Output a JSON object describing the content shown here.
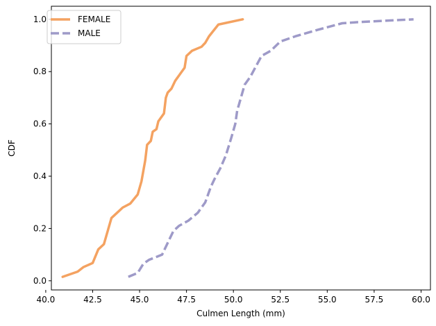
{
  "chart_data": {
    "type": "line",
    "title": "",
    "xlabel": "Culmen Length (mm)",
    "ylabel": "CDF",
    "xlim": [
      40.3,
      60.5
    ],
    "ylim": [
      -0.035,
      1.05
    ],
    "xticks": [
      40.0,
      42.5,
      45.0,
      47.5,
      50.0,
      52.5,
      55.0,
      57.5,
      60.0
    ],
    "xtick_labels": [
      "40.0",
      "42.5",
      "45.0",
      "47.5",
      "50.0",
      "52.5",
      "55.0",
      "57.5",
      "60.0"
    ],
    "yticks": [
      0.0,
      0.2,
      0.4,
      0.6,
      0.8,
      1.0
    ],
    "ytick_labels": [
      "0.0",
      "0.2",
      "0.4",
      "0.6",
      "0.8",
      "1.0"
    ],
    "grid": false,
    "legend": "top-left",
    "series": [
      {
        "name": "FEMALE",
        "color": "#F4A261",
        "style": "solid",
        "points": [
          [
            40.9,
            0.015
          ],
          [
            41.7,
            0.035
          ],
          [
            42.0,
            0.052
          ],
          [
            42.5,
            0.068
          ],
          [
            42.8,
            0.12
          ],
          [
            43.1,
            0.14
          ],
          [
            43.3,
            0.19
          ],
          [
            43.5,
            0.24
          ],
          [
            43.8,
            0.26
          ],
          [
            44.1,
            0.28
          ],
          [
            44.5,
            0.295
          ],
          [
            44.9,
            0.33
          ],
          [
            45.1,
            0.38
          ],
          [
            45.2,
            0.42
          ],
          [
            45.3,
            0.46
          ],
          [
            45.4,
            0.52
          ],
          [
            45.6,
            0.535
          ],
          [
            45.7,
            0.57
          ],
          [
            45.9,
            0.58
          ],
          [
            46.0,
            0.61
          ],
          [
            46.1,
            0.62
          ],
          [
            46.3,
            0.64
          ],
          [
            46.4,
            0.7
          ],
          [
            46.5,
            0.72
          ],
          [
            46.7,
            0.735
          ],
          [
            46.9,
            0.765
          ],
          [
            47.2,
            0.795
          ],
          [
            47.4,
            0.815
          ],
          [
            47.5,
            0.86
          ],
          [
            47.8,
            0.88
          ],
          [
            48.3,
            0.895
          ],
          [
            48.5,
            0.91
          ],
          [
            48.7,
            0.935
          ],
          [
            49.2,
            0.98
          ],
          [
            50.5,
            1.0
          ]
        ]
      },
      {
        "name": "MALE",
        "color": "#9E9AC8",
        "style": "dashed",
        "points": [
          [
            44.4,
            0.015
          ],
          [
            44.9,
            0.03
          ],
          [
            45.2,
            0.065
          ],
          [
            45.5,
            0.08
          ],
          [
            46.2,
            0.1
          ],
          [
            46.5,
            0.145
          ],
          [
            46.8,
            0.19
          ],
          [
            47.1,
            0.21
          ],
          [
            47.6,
            0.23
          ],
          [
            48.1,
            0.26
          ],
          [
            48.5,
            0.3
          ],
          [
            48.8,
            0.36
          ],
          [
            49.0,
            0.39
          ],
          [
            49.3,
            0.43
          ],
          [
            49.6,
            0.48
          ],
          [
            49.9,
            0.55
          ],
          [
            50.1,
            0.6
          ],
          [
            50.2,
            0.65
          ],
          [
            50.4,
            0.7
          ],
          [
            50.6,
            0.75
          ],
          [
            50.9,
            0.78
          ],
          [
            51.2,
            0.82
          ],
          [
            51.5,
            0.86
          ],
          [
            52.0,
            0.88
          ],
          [
            52.5,
            0.915
          ],
          [
            53.3,
            0.935
          ],
          [
            54.5,
            0.96
          ],
          [
            55.8,
            0.985
          ],
          [
            56.8,
            0.99
          ],
          [
            59.6,
            1.0
          ]
        ]
      }
    ]
  }
}
